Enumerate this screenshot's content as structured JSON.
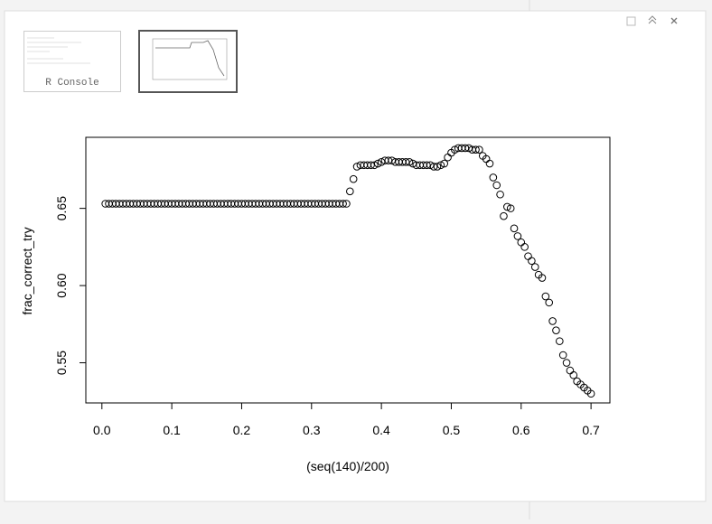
{
  "ui": {
    "thumbnail_label": "R Console"
  },
  "chart_data": {
    "type": "scatter",
    "xlabel": "(seq(140)/200)",
    "ylabel": "frac_correct_try",
    "x": [
      0.005,
      0.01,
      0.015,
      0.02,
      0.025,
      0.03,
      0.035,
      0.04,
      0.045,
      0.05,
      0.055,
      0.06,
      0.065,
      0.07,
      0.075,
      0.08,
      0.085,
      0.09,
      0.095,
      0.1,
      0.105,
      0.11,
      0.115,
      0.12,
      0.125,
      0.13,
      0.135,
      0.14,
      0.145,
      0.15,
      0.155,
      0.16,
      0.165,
      0.17,
      0.175,
      0.18,
      0.185,
      0.19,
      0.195,
      0.2,
      0.205,
      0.21,
      0.215,
      0.22,
      0.225,
      0.23,
      0.235,
      0.24,
      0.245,
      0.25,
      0.255,
      0.26,
      0.265,
      0.27,
      0.275,
      0.28,
      0.285,
      0.29,
      0.295,
      0.3,
      0.305,
      0.31,
      0.315,
      0.32,
      0.325,
      0.33,
      0.335,
      0.34,
      0.345,
      0.35,
      0.355,
      0.36,
      0.365,
      0.37,
      0.375,
      0.38,
      0.385,
      0.39,
      0.395,
      0.4,
      0.405,
      0.41,
      0.415,
      0.42,
      0.425,
      0.43,
      0.435,
      0.44,
      0.445,
      0.45,
      0.455,
      0.46,
      0.465,
      0.47,
      0.475,
      0.48,
      0.485,
      0.49,
      0.495,
      0.5,
      0.505,
      0.51,
      0.515,
      0.52,
      0.525,
      0.53,
      0.535,
      0.54,
      0.545,
      0.55,
      0.555,
      0.56,
      0.565,
      0.57,
      0.575,
      0.58,
      0.585,
      0.59,
      0.595,
      0.6,
      0.605,
      0.61,
      0.615,
      0.62,
      0.625,
      0.63,
      0.635,
      0.64,
      0.645,
      0.65,
      0.655,
      0.66,
      0.665,
      0.67,
      0.675,
      0.68,
      0.685,
      0.69,
      0.695,
      0.7
    ],
    "values": [
      0.653,
      0.653,
      0.653,
      0.653,
      0.653,
      0.653,
      0.653,
      0.653,
      0.653,
      0.653,
      0.653,
      0.653,
      0.653,
      0.653,
      0.653,
      0.653,
      0.653,
      0.653,
      0.653,
      0.653,
      0.653,
      0.653,
      0.653,
      0.653,
      0.653,
      0.653,
      0.653,
      0.653,
      0.653,
      0.653,
      0.653,
      0.653,
      0.653,
      0.653,
      0.653,
      0.653,
      0.653,
      0.653,
      0.653,
      0.653,
      0.653,
      0.653,
      0.653,
      0.653,
      0.653,
      0.653,
      0.653,
      0.653,
      0.653,
      0.653,
      0.653,
      0.653,
      0.653,
      0.653,
      0.653,
      0.653,
      0.653,
      0.653,
      0.653,
      0.653,
      0.653,
      0.653,
      0.653,
      0.653,
      0.653,
      0.653,
      0.653,
      0.653,
      0.653,
      0.653,
      0.661,
      0.669,
      0.677,
      0.678,
      0.678,
      0.678,
      0.678,
      0.678,
      0.679,
      0.68,
      0.681,
      0.681,
      0.681,
      0.68,
      0.68,
      0.68,
      0.68,
      0.68,
      0.679,
      0.678,
      0.678,
      0.678,
      0.678,
      0.678,
      0.677,
      0.677,
      0.678,
      0.679,
      0.683,
      0.686,
      0.688,
      0.689,
      0.689,
      0.689,
      0.689,
      0.688,
      0.688,
      0.688,
      0.684,
      0.682,
      0.679,
      0.67,
      0.665,
      0.659,
      0.645,
      0.651,
      0.65,
      0.637,
      0.632,
      0.628,
      0.625,
      0.619,
      0.616,
      0.612,
      0.607,
      0.605,
      0.593,
      0.589,
      0.577,
      0.571,
      0.564,
      0.555,
      0.55,
      0.545,
      0.542,
      0.538,
      0.536,
      0.534,
      0.532,
      0.53
    ],
    "xlim": [
      -0.023,
      0.727
    ],
    "ylim": [
      0.524,
      0.696
    ],
    "xticks": [
      {
        "value": 0,
        "label": "0.0"
      },
      0.1,
      0.2,
      0.3,
      0.4,
      0.5,
      0.6,
      0.7
    ],
    "yticks": [
      0.55,
      {
        "value": 0.6,
        "label": "0.60"
      },
      0.65
    ],
    "color": "#000000"
  }
}
